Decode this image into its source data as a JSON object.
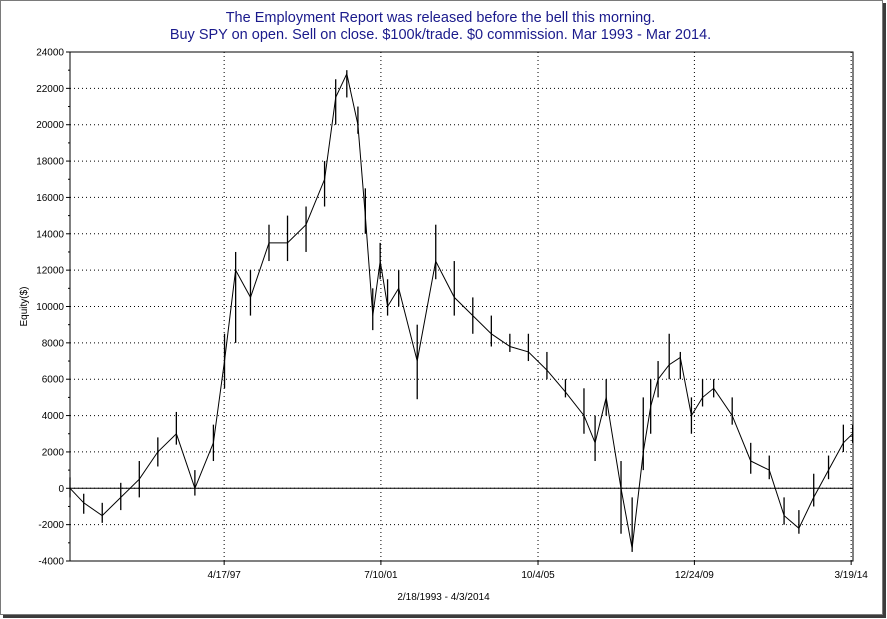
{
  "chart_data": {
    "type": "ohlc",
    "title": "The Employment Report was released before the bell this morning.",
    "subtitle": "Buy SPY on open. Sell on close. $100k/trade. $0 commission. Mar 1993 - Mar 2014.",
    "ylabel": "Equity($)",
    "xlabel": "2/18/1993 - 4/3/2014",
    "ylim": [
      -4000,
      24000
    ],
    "y_ticks": [
      -4000,
      -2000,
      0,
      2000,
      4000,
      6000,
      8000,
      10000,
      12000,
      14000,
      16000,
      18000,
      20000,
      22000,
      24000
    ],
    "y_tick_labels": [
      "-4000",
      "-2000",
      "0",
      "2000",
      "4000",
      "6000",
      "8000",
      "10000",
      "12000",
      "14000",
      "16000",
      "18000",
      "20000",
      "22000",
      "24000"
    ],
    "x_tick_labels": [
      "4/17/97",
      "7/10/01",
      "10/4/05",
      "12/24/09",
      "3/19/14"
    ],
    "grid": true,
    "zero_line": true,
    "bar_color": "#000000",
    "title_color": "#1a1a8c",
    "series": [
      {
        "x": [
          1993.13,
          1993.5,
          1994,
          1994.5,
          1995,
          1995.5,
          1996,
          1996.5,
          1997,
          1997.3,
          1997.6,
          1998,
          1998.5,
          1999,
          1999.5,
          2000,
          2000.3,
          2000.6,
          2000.9,
          2001.1,
          2001.3,
          2001.5,
          2001.7,
          2002,
          2002.5,
          2003,
          2003.5,
          2004,
          2004.5,
          2005,
          2005.5,
          2006,
          2006.5,
          2007,
          2007.3,
          2007.6,
          2008,
          2008.3,
          2008.6,
          2008.8,
          2009,
          2009.3,
          2009.6,
          2009.9,
          2010.2,
          2010.5,
          2011,
          2011.5,
          2012,
          2012.4,
          2012.8,
          2013.2,
          2013.6,
          2014,
          2014.25
        ],
        "y": [
          0,
          -800,
          -1500,
          -500,
          500,
          2000,
          3000,
          0,
          2500,
          7000,
          12000,
          10500,
          13500,
          13500,
          14500,
          17000,
          21500,
          22800,
          20000,
          15000,
          9500,
          12500,
          10000,
          11000,
          7000,
          12500,
          10500,
          9500,
          8500,
          7800,
          7500,
          6500,
          5300,
          4000,
          2500,
          5000,
          0,
          -3300,
          2000,
          4500,
          6000,
          6800,
          7200,
          4000,
          5000,
          5500,
          4000,
          1500,
          1000,
          -1500,
          -2200,
          -500,
          1000,
          2500,
          3000
        ],
        "high": [
          600,
          -300,
          -800,
          300,
          1500,
          2800,
          4200,
          1000,
          3500,
          8500,
          13000,
          12000,
          14500,
          15000,
          15500,
          18000,
          22500,
          23000,
          21000,
          16500,
          11000,
          13500,
          11500,
          12000,
          9000,
          14500,
          12500,
          10500,
          9500,
          8500,
          8500,
          7500,
          6000,
          5500,
          4000,
          6000,
          1500,
          -500,
          5000,
          6000,
          7000,
          8500,
          7500,
          5000,
          6000,
          6000,
          5000,
          2500,
          1800,
          -500,
          -1200,
          800,
          1800,
          3500,
          3500
        ],
        "low": [
          -500,
          -1400,
          -1900,
          -1200,
          -500,
          1200,
          2400,
          -400,
          1500,
          5500,
          8000,
          9500,
          12500,
          12500,
          13000,
          15500,
          20000,
          21500,
          19500,
          14000,
          8700,
          11500,
          9500,
          10000,
          4900,
          11500,
          9500,
          8500,
          7800,
          7500,
          7000,
          6000,
          5000,
          3000,
          1500,
          4000,
          -2500,
          -3500,
          1000,
          3000,
          5000,
          6000,
          6000,
          3000,
          4500,
          5000,
          3500,
          800,
          500,
          -2000,
          -2500,
          -1000,
          500,
          2000,
          2500
        ]
      }
    ]
  }
}
